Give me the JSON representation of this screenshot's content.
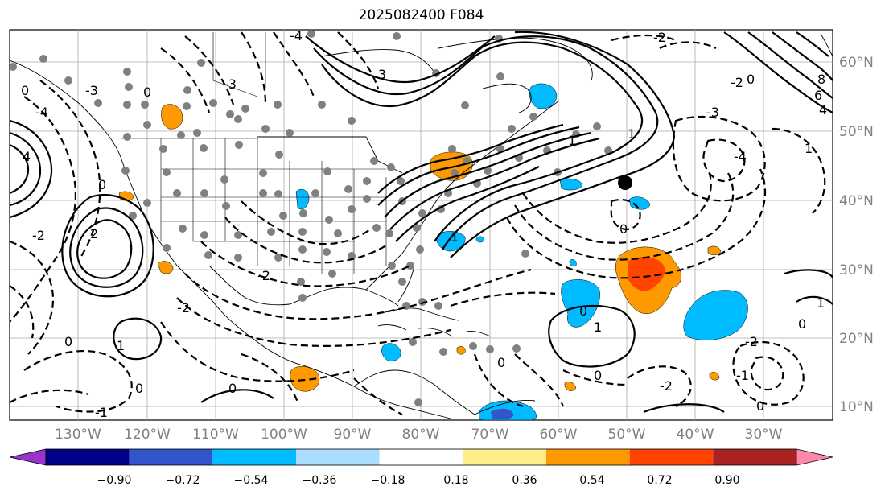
{
  "title": "2025082400 F084",
  "latitude_labels": [
    "60°N",
    "50°N",
    "40°N",
    "30°N",
    "20°N",
    "10°N"
  ],
  "longitude_labels": [
    "130°W",
    "120°W",
    "110°W",
    "100°W",
    "90°W",
    "80°W",
    "70°W",
    "60°W",
    "50°W",
    "40°W",
    "30°W"
  ],
  "colorbar": {
    "tick_labels": [
      "−0.90",
      "−0.72",
      "−0.54",
      "−0.36",
      "−0.18",
      "0.18",
      "0.36",
      "0.54",
      "0.72",
      "0.90"
    ],
    "colors": [
      "#9933cc",
      "#000088",
      "#3355cc",
      "#00bbff",
      "#aaddff",
      "#ffffff",
      "#ffee88",
      "#ff9900",
      "#ff4400",
      "#aa2222",
      "#ff88aa"
    ]
  },
  "contour_labels": [
    "0",
    "-1",
    "-2",
    "-3",
    "-4",
    "1",
    "2",
    "3",
    "4",
    "6",
    "8"
  ],
  "legend_colors": {
    "contour": "#000000",
    "station_dot": "#808080",
    "marker": "#000000",
    "grid": "#aaaaaa"
  }
}
